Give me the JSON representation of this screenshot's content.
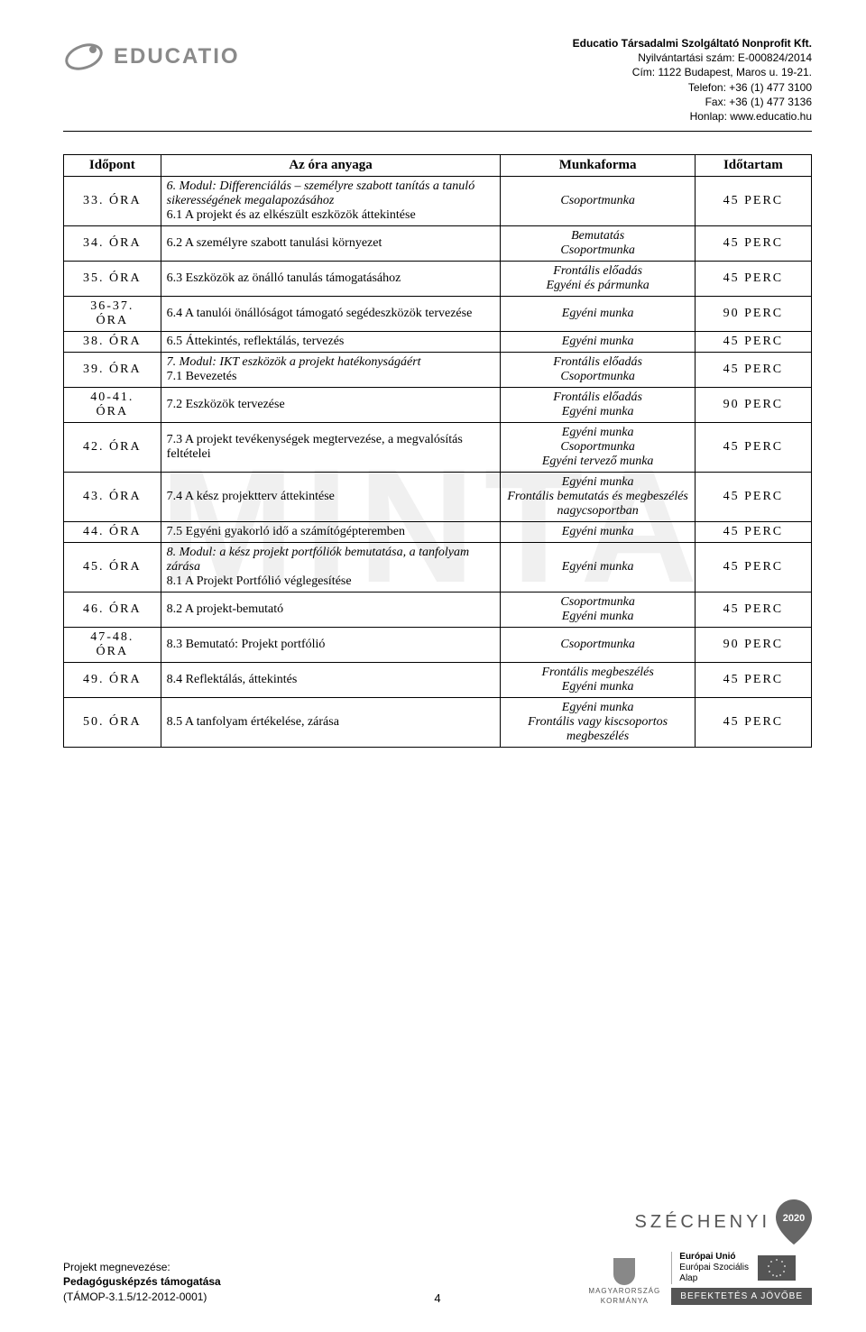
{
  "header": {
    "logo_text": "EDUCATIO",
    "org_name": "Educatio Társadalmi Szolgáltató Nonprofit Kft.",
    "reg": "Nyilvántartási szám: E-000824/2014",
    "addr": "Cím: 1122 Budapest, Maros u. 19-21.",
    "tel": "Telefon: +36 (1) 477 3100",
    "fax": "Fax: +36 (1) 477 3136",
    "web": "Honlap: www.educatio.hu"
  },
  "watermark": "MINTA",
  "table": {
    "headers": {
      "time": "Időpont",
      "topic": "Az óra anyaga",
      "form": "Munkaforma",
      "dur": "Időtartam"
    },
    "rows": [
      {
        "time": "33. ÓRA",
        "topic_module": "6. Modul: Differenciálás – személyre szabott tanítás a tanuló sikerességének megalapozásához",
        "topic_plain": "6.1 A projekt és az elkészült eszközök áttekintése",
        "form": "Csoportmunka",
        "dur": "45 PERC"
      },
      {
        "time": "34. ÓRA",
        "topic_plain": "6.2 A személyre szabott tanulási környezet",
        "form": "Bemutatás\nCsoportmunka",
        "dur": "45 PERC"
      },
      {
        "time": "35. ÓRA",
        "topic_plain": "6.3 Eszközök az önálló tanulás támogatásához",
        "form": "Frontális előadás\nEgyéni és pármunka",
        "dur": "45 PERC"
      },
      {
        "time": "36-37.\nÓRA",
        "topic_plain": "6.4 A tanulói önállóságot támogató segédeszközök tervezése",
        "form": "Egyéni munka",
        "dur": "90 PERC"
      },
      {
        "time": "38. ÓRA",
        "topic_plain": "6.5 Áttekintés, reflektálás, tervezés",
        "form": "Egyéni munka",
        "dur": "45 PERC"
      },
      {
        "time": "39. ÓRA",
        "topic_module": "7. Modul: IKT eszközök a projekt hatékonyságáért",
        "topic_plain": "7.1 Bevezetés",
        "form": "Frontális előadás\nCsoportmunka",
        "dur": "45 PERC"
      },
      {
        "time": "40-41.\nÓRA",
        "topic_plain": "7.2 Eszközök tervezése",
        "form": "Frontális előadás\nEgyéni munka",
        "dur": "90 PERC"
      },
      {
        "time": "42. ÓRA",
        "topic_plain": "7.3 A projekt tevékenységek megtervezése, a megvalósítás feltételei",
        "form": "Egyéni munka\nCsoportmunka\nEgyéni tervező munka",
        "dur": "45 PERC"
      },
      {
        "time": "43. ÓRA",
        "topic_plain": "7.4 A kész projektterv áttekintése",
        "form": "Egyéni munka\nFrontális bemutatás és megbeszélés nagycsoportban",
        "dur": "45 PERC"
      },
      {
        "time": "44. ÓRA",
        "topic_plain": "7.5 Egyéni gyakorló idő a számítógépteremben",
        "form": "Egyéni munka",
        "dur": "45 PERC"
      },
      {
        "time": "45. ÓRA",
        "topic_module": "8. Modul: a kész projekt portfóliók bemutatása, a tanfolyam zárása",
        "topic_plain": "8.1 A Projekt Portfólió véglegesítése",
        "form": "Egyéni munka",
        "dur": "45 PERC"
      },
      {
        "time": "46. ÓRA",
        "topic_plain": "8.2 A projekt-bemutató",
        "form": "Csoportmunka\nEgyéni munka",
        "dur": "45 PERC"
      },
      {
        "time": "47-48.\nÓRA",
        "topic_plain": "8.3 Bemutató: Projekt portfólió",
        "form": "Csoportmunka",
        "dur": "90 PERC"
      },
      {
        "time": "49. ÓRA",
        "topic_plain": "8.4 Reflektálás, áttekintés",
        "form": "Frontális megbeszélés\nEgyéni munka",
        "dur": "45 PERC"
      },
      {
        "time": "50. ÓRA",
        "topic_plain": "8.5 A tanfolyam értékelése, zárása",
        "form": "Egyéni munka\nFrontális vagy kiscsoportos megbeszélés",
        "dur": "45 PERC"
      }
    ]
  },
  "footer": {
    "proj_label": "Projekt megnevezése:",
    "proj_title": "Pedagógusképzés támogatása",
    "proj_code": "(TÁMOP-3.1.5/12-2012-0001)",
    "page_num": "4",
    "szechenyi": "SZÉCHENYI",
    "szechenyi_year": "2020",
    "hungary1": "MAGYARORSZÁG",
    "hungary2": "KORMÁNYA",
    "eu_title": "Európai Unió",
    "eu_sub1": "Európai Szociális",
    "eu_sub2": "Alap",
    "invest": "BEFEKTETÉS A JÖVŐBE"
  }
}
